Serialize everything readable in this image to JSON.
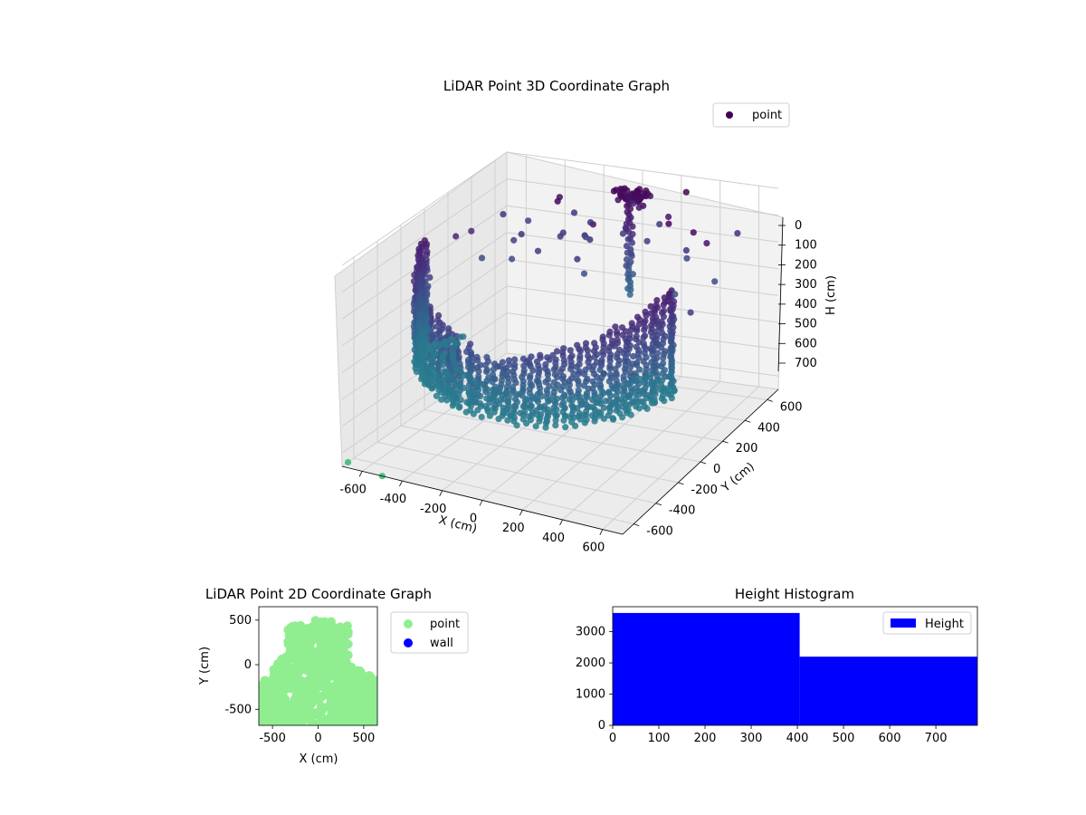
{
  "chart_data": [
    {
      "type": "scatter",
      "projection": "3d",
      "title": "LiDAR Point 3D Coordinate Graph",
      "xlabel": "X (cm)",
      "ylabel": "Y (cm)",
      "zlabel": "H (cm)",
      "xlim": [
        -700,
        700
      ],
      "ylim": [
        -700,
        700
      ],
      "zlim": [
        750,
        0
      ],
      "xticks": [
        -600,
        -400,
        -200,
        0,
        200,
        400,
        600
      ],
      "yticks": [
        -600,
        -400,
        -200,
        0,
        200,
        400,
        600
      ],
      "zticks": [
        0,
        100,
        200,
        300,
        400,
        500,
        600,
        700
      ],
      "zaxis_inverted": true,
      "grid": true,
      "legend": "upper-right",
      "series": [
        {
          "name": "point",
          "color": "#440154",
          "colormap": "viridis",
          "description_points": [
            {
              "x": 650,
              "y": 0,
              "h": 200
            },
            {
              "x": 600,
              "y": -200,
              "h": 250
            },
            {
              "x": 450,
              "y": -420,
              "h": 300
            },
            {
              "x": 200,
              "y": -560,
              "h": 320
            },
            {
              "x": 0,
              "y": -600,
              "h": 330
            },
            {
              "x": -250,
              "y": -550,
              "h": 320
            },
            {
              "x": -500,
              "y": -350,
              "h": 280
            },
            {
              "x": -600,
              "y": 100,
              "h": 120
            },
            {
              "x": 100,
              "y": 500,
              "h": 60
            },
            {
              "x": 150,
              "y": 450,
              "h": 30
            },
            {
              "x": -300,
              "y": 300,
              "h": 200
            },
            {
              "x": 400,
              "y": 400,
              "h": 150
            },
            {
              "x": -700,
              "y": -650,
              "h": 750
            },
            {
              "x": -500,
              "y": -700,
              "h": 750
            }
          ]
        }
      ]
    },
    {
      "type": "scatter",
      "title": "LiDAR Point 2D Coordinate Graph",
      "xlabel": "X (cm)",
      "ylabel": "Y (cm)",
      "xlim": [
        -650,
        650
      ],
      "ylim": [
        -680,
        650
      ],
      "xticks": [
        -500,
        0,
        500
      ],
      "yticks": [
        -500,
        0,
        500
      ],
      "grid": false,
      "legend": "outside-right",
      "series": [
        {
          "name": "point",
          "color": "#90ee90"
        },
        {
          "name": "wall",
          "color": "#0000ff"
        }
      ]
    },
    {
      "type": "bar",
      "title": "Height Histogram",
      "xlabel": "",
      "ylabel": "",
      "xlim": [
        0,
        790
      ],
      "ylim": [
        0,
        3800
      ],
      "xticks": [
        0,
        100,
        200,
        300,
        400,
        500,
        600,
        700
      ],
      "yticks": [
        0,
        1000,
        2000,
        3000
      ],
      "grid": false,
      "legend": "upper-right",
      "series": [
        {
          "name": "Height",
          "color": "#0000ff",
          "bins": [
            {
              "x0": 0,
              "x1": 405,
              "count": 3600
            },
            {
              "x0": 405,
              "x1": 790,
              "count": 2200
            }
          ]
        }
      ]
    }
  ]
}
